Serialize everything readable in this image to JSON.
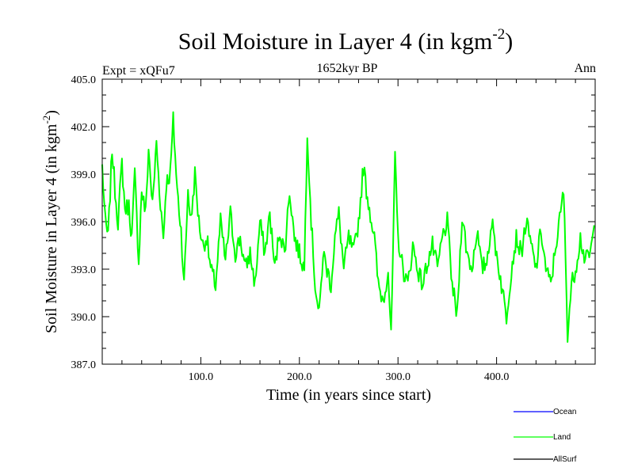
{
  "chart_data": {
    "type": "line",
    "title": "Soil Moisture in Layer 4 (in kgm",
    "title_sup": "-2",
    "title_close": ")",
    "subtitle": "1652kyr BP",
    "left_label": "Expt = xQFu7",
    "right_label": "Ann",
    "xlabel": "Time (in years since start)",
    "ylabel": "Soil Moisture in Layer 4 (in kgm",
    "ylabel_sup": "-2",
    "ylabel_close": ")",
    "xlim": [
      0,
      500
    ],
    "ylim": [
      387.0,
      405.0
    ],
    "x_ticks": [
      100,
      200,
      300,
      400
    ],
    "x_tick_labels": [
      "100.0",
      "200.0",
      "300.0",
      "400.0"
    ],
    "y_ticks": [
      387,
      390,
      393,
      396,
      399,
      402,
      405
    ],
    "y_tick_labels": [
      "387.0",
      "390.0",
      "393.0",
      "396.0",
      "399.0",
      "402.0",
      "405.0"
    ],
    "series": [
      {
        "name": "Ocean",
        "color": "#0000ff",
        "values": []
      },
      {
        "name": "Land",
        "color": "#00ff00",
        "values": []
      },
      {
        "name": "AllSurf",
        "color": "#000000",
        "values": []
      }
    ],
    "land_keypoints": {
      "x": [
        0,
        3,
        6,
        10,
        13,
        16,
        20,
        23,
        27,
        30,
        33,
        37,
        40,
        44,
        47,
        51,
        55,
        58,
        62,
        65,
        69,
        72,
        76,
        80,
        83,
        87,
        90,
        94,
        98,
        102,
        106,
        110,
        115,
        120,
        125,
        130,
        135,
        140,
        145,
        150,
        155,
        160,
        165,
        170,
        175,
        180,
        185,
        190,
        195,
        200,
        205,
        208,
        212,
        216,
        220,
        224,
        228,
        232,
        236,
        240,
        245,
        250,
        255,
        260,
        265,
        268,
        272,
        276,
        280,
        285,
        290,
        293,
        297,
        300,
        305,
        310,
        315,
        320,
        325,
        330,
        335,
        340,
        345,
        350,
        355,
        360,
        365,
        370,
        375,
        380,
        385,
        390,
        395,
        400,
        405,
        410,
        415,
        420,
        425,
        430,
        435,
        440,
        445,
        450,
        455,
        460,
        465,
        468,
        472,
        476,
        480,
        485,
        490,
        495,
        499
      ],
      "y": [
        399.5,
        396.0,
        395.0,
        400.6,
        398.0,
        396.0,
        399.7,
        396.8,
        397.0,
        395.0,
        399.0,
        393.5,
        398.0,
        396.5,
        400.6,
        397.0,
        401.0,
        398.0,
        395.0,
        398.5,
        399.0,
        402.4,
        398.0,
        395.5,
        392.0,
        398.0,
        396.0,
        399.0,
        396.0,
        394.5,
        395.0,
        393.0,
        392.0,
        396.0,
        393.5,
        396.5,
        394.0,
        395.0,
        393.0,
        394.0,
        392.0,
        396.0,
        394.0,
        396.5,
        393.0,
        395.5,
        394.0,
        398.0,
        395.0,
        394.0,
        393.0,
        401.8,
        396.0,
        392.0,
        390.0,
        394.0,
        393.0,
        392.0,
        395.0,
        396.5,
        393.0,
        395.0,
        394.0,
        396.0,
        399.5,
        398.0,
        396.5,
        395.0,
        392.0,
        391.0,
        393.0,
        388.6,
        399.9,
        395.0,
        393.0,
        392.0,
        394.5,
        393.0,
        392.0,
        393.5,
        394.5,
        393.0,
        395.0,
        396.0,
        392.0,
        390.0,
        396.5,
        394.0,
        393.0,
        395.5,
        393.0,
        393.5,
        396.0,
        394.0,
        392.0,
        390.0,
        393.0,
        395.0,
        394.0,
        396.0,
        394.5,
        393.0,
        395.5,
        393.0,
        392.0,
        394.5,
        396.5,
        398.0,
        389.0,
        392.0,
        393.0,
        395.0,
        393.5,
        394.0,
        395.5
      ]
    },
    "legend": {
      "placement": "bottom-right",
      "entries": [
        {
          "label": "Ocean",
          "color": "#0000ff"
        },
        {
          "label": "Land",
          "color": "#00ff00"
        },
        {
          "label": "AllSurf",
          "color": "#000000"
        }
      ]
    }
  }
}
